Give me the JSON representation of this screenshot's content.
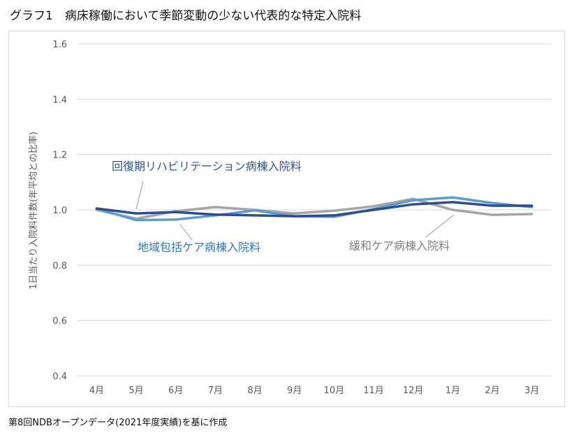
{
  "title": "グラフ1　病床稼働において季節変動の少ない代表的な特定入院料",
  "footnote": "第8回NDBオープンデータ(2021年度実績)を基に作成",
  "colors": {
    "series_rehab": "#2e4d8f",
    "series_community": "#5b9bd5",
    "series_palliative": "#a5a5a5",
    "grid": "#d9d9d9",
    "tick": "#595959",
    "annot_rehab": "#2f5597",
    "annot_community": "#2e75b6",
    "annot_palliative": "#7f7f7f"
  },
  "chart_data": {
    "type": "line",
    "title": "",
    "xlabel": "",
    "ylabel": "1日当たり入院料件数(年平均との比率)",
    "categories": [
      "4月",
      "5月",
      "6月",
      "7月",
      "8月",
      "9月",
      "10月",
      "11月",
      "12月",
      "1月",
      "2月",
      "3月"
    ],
    "ylim": [
      0.4,
      1.6
    ],
    "yticks": [
      "0.4",
      "0.6",
      "0.8",
      "1.0",
      "1.2",
      "1.4",
      "1.6"
    ],
    "grid": true,
    "series": [
      {
        "name": "回復期リハビリテーション病棟入院料",
        "values": [
          1.005,
          0.987,
          0.992,
          0.983,
          0.98,
          0.977,
          0.98,
          1.0,
          1.02,
          1.028,
          1.015,
          1.015
        ]
      },
      {
        "name": "地域包括ケア病棟入院料",
        "values": [
          1.005,
          0.963,
          0.965,
          0.98,
          0.998,
          0.977,
          0.975,
          1.003,
          1.035,
          1.045,
          1.025,
          1.01
        ]
      },
      {
        "name": "緩和ケア病棟入院料",
        "values": [
          1.0,
          0.968,
          0.995,
          1.01,
          1.0,
          0.987,
          0.997,
          1.013,
          1.04,
          1.0,
          0.982,
          0.985
        ]
      }
    ]
  }
}
